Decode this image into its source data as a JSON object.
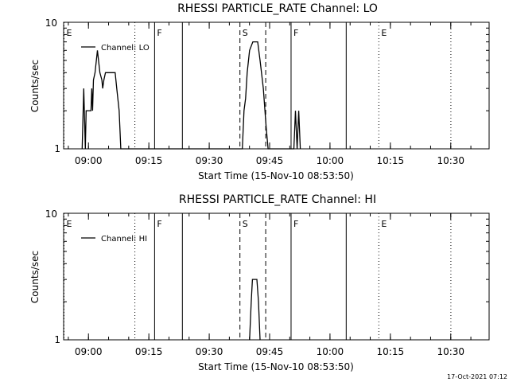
{
  "chart_data": [
    {
      "type": "line",
      "title": "RHESSI PARTICLE_RATE Channel: LO",
      "xlabel": "Start Time (15-Nov-10 08:53:50)",
      "ylabel": "Counts/sec",
      "y_scale": "log",
      "ylim": [
        1,
        10
      ],
      "y_tick_labels": [
        "1",
        "10"
      ],
      "x_unit": "minutes after 08:53:50",
      "xlim": [
        0,
        105.7
      ],
      "x_ticks": [
        {
          "x": 6.17,
          "label": "09:00"
        },
        {
          "x": 21.17,
          "label": "09:15"
        },
        {
          "x": 36.17,
          "label": "09:30"
        },
        {
          "x": 51.17,
          "label": "09:45"
        },
        {
          "x": 66.17,
          "label": "10:00"
        },
        {
          "x": 81.17,
          "label": "10:15"
        },
        {
          "x": 96.17,
          "label": "10:30"
        }
      ],
      "legend": "top-left",
      "series": [
        {
          "name": "Channel: LO",
          "points": [
            [
              4.6,
              1.0
            ],
            [
              5.0,
              3.0
            ],
            [
              5.4,
              1.0
            ],
            [
              5.6,
              2.0
            ],
            [
              6.8,
              2.0
            ],
            [
              7.0,
              3.0
            ],
            [
              7.2,
              2.0
            ],
            [
              7.4,
              3.5
            ],
            [
              7.8,
              4.0
            ],
            [
              8.4,
              6.0
            ],
            [
              9.0,
              4.0
            ],
            [
              9.5,
              3.5
            ],
            [
              9.7,
              3.0
            ],
            [
              10.0,
              3.5
            ],
            [
              10.4,
              4.0
            ],
            [
              12.8,
              4.0
            ],
            [
              13.2,
              3.0
            ],
            [
              13.8,
              2.0
            ],
            [
              14.2,
              1.0
            ],
            [
              44.4,
              1.0
            ],
            [
              44.8,
              2.0
            ],
            [
              45.2,
              2.5
            ],
            [
              45.6,
              4.0
            ],
            [
              46.2,
              6.0
            ],
            [
              47.0,
              7.0
            ],
            [
              48.2,
              7.0
            ],
            [
              48.8,
              5.0
            ],
            [
              49.6,
              3.0
            ],
            [
              50.3,
              1.5
            ],
            [
              50.8,
              1.0
            ],
            [
              57.2,
              1.0
            ],
            [
              57.6,
              2.0
            ],
            [
              58.0,
              1.0
            ],
            [
              58.4,
              2.0
            ],
            [
              58.8,
              1.0
            ]
          ]
        }
      ],
      "vertical_markers": [
        {
          "x": 0.0,
          "label": "E",
          "style": "dotted"
        },
        {
          "x": 17.7,
          "label": "",
          "style": "dotted"
        },
        {
          "x": 22.6,
          "label": "F",
          "style": "solid"
        },
        {
          "x": 29.5,
          "label": "",
          "style": "solid"
        },
        {
          "x": 43.8,
          "label": "S",
          "style": "dashed"
        },
        {
          "x": 50.2,
          "label": "",
          "style": "dashed"
        },
        {
          "x": 56.5,
          "label": "F",
          "style": "solid"
        },
        {
          "x": 70.2,
          "label": "",
          "style": "solid"
        },
        {
          "x": 78.3,
          "label": "E",
          "style": "dotted"
        },
        {
          "x": 96.2,
          "label": "",
          "style": "dotted"
        }
      ]
    },
    {
      "type": "line",
      "title": "RHESSI PARTICLE_RATE Channel: HI",
      "xlabel": "Start Time (15-Nov-10 08:53:50)",
      "ylabel": "Counts/sec",
      "y_scale": "log",
      "ylim": [
        1,
        10
      ],
      "y_tick_labels": [
        "1",
        "10"
      ],
      "x_unit": "minutes after 08:53:50",
      "xlim": [
        0,
        105.7
      ],
      "x_ticks": [
        {
          "x": 6.17,
          "label": "09:00"
        },
        {
          "x": 21.17,
          "label": "09:15"
        },
        {
          "x": 36.17,
          "label": "09:30"
        },
        {
          "x": 51.17,
          "label": "09:45"
        },
        {
          "x": 66.17,
          "label": "10:00"
        },
        {
          "x": 81.17,
          "label": "10:15"
        },
        {
          "x": 96.17,
          "label": "10:30"
        }
      ],
      "legend": "top-left",
      "series": [
        {
          "name": "Channel: HI",
          "points": [
            [
              46.2,
              1.0
            ],
            [
              46.6,
              2.0
            ],
            [
              46.9,
              3.0
            ],
            [
              48.0,
              3.0
            ],
            [
              48.4,
              2.0
            ],
            [
              48.8,
              1.0
            ]
          ]
        }
      ],
      "vertical_markers": [
        {
          "x": 0.0,
          "label": "E",
          "style": "dotted"
        },
        {
          "x": 17.7,
          "label": "",
          "style": "dotted"
        },
        {
          "x": 22.6,
          "label": "F",
          "style": "solid"
        },
        {
          "x": 29.5,
          "label": "",
          "style": "solid"
        },
        {
          "x": 43.8,
          "label": "S",
          "style": "dashed"
        },
        {
          "x": 50.2,
          "label": "",
          "style": "dashed"
        },
        {
          "x": 56.5,
          "label": "F",
          "style": "solid"
        },
        {
          "x": 70.2,
          "label": "",
          "style": "solid"
        },
        {
          "x": 78.3,
          "label": "E",
          "style": "dotted"
        },
        {
          "x": 96.2,
          "label": "",
          "style": "dotted"
        }
      ]
    }
  ],
  "footer_timestamp": "17-Oct-2021 07:12"
}
